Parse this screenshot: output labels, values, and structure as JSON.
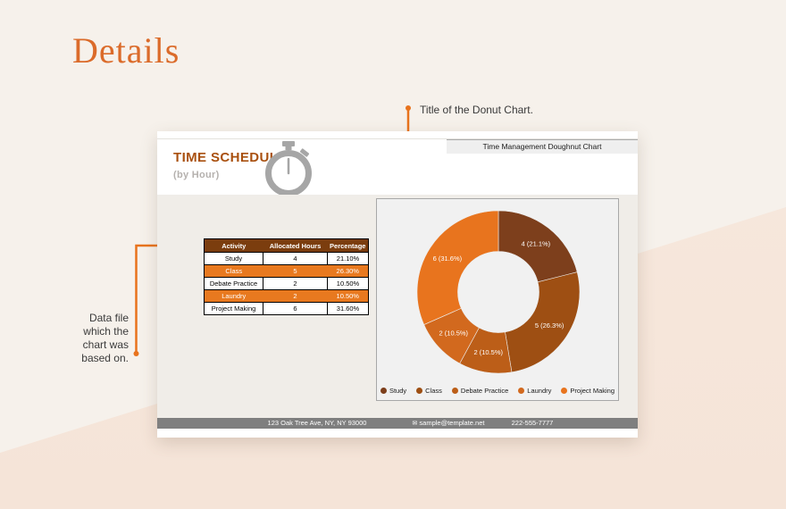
{
  "page": {
    "heading": "Details"
  },
  "annotations": {
    "title_note": "Title of the Donut Chart.",
    "data_note_lines": [
      "Data file",
      "which the",
      "chart was",
      "based on."
    ]
  },
  "slide": {
    "title": "TIME SCHEDULE",
    "subtitle": "(by Hour)",
    "header_strip": "Time Management Doughnut Chart",
    "table": {
      "headers": [
        "Activity",
        "Allocated Hours",
        "Percentage"
      ],
      "rows": [
        {
          "activity": "Study",
          "hours": "4",
          "percentage": "21.10%",
          "highlight": false
        },
        {
          "activity": "Class",
          "hours": "5",
          "percentage": "26.30%",
          "highlight": true
        },
        {
          "activity": "Debate Practice",
          "hours": "2",
          "percentage": "10.50%",
          "highlight": false
        },
        {
          "activity": "Laundry",
          "hours": "2",
          "percentage": "10.50%",
          "highlight": true
        },
        {
          "activity": "Project Making",
          "hours": "6",
          "percentage": "31.60%",
          "highlight": false
        }
      ]
    },
    "footer": {
      "address": "123 Oak Tree Ave, NY, NY 93000",
      "email": "sample@template.net",
      "email_icon": "envelope-icon",
      "phone": "222-555-7777"
    }
  },
  "chart_data": {
    "type": "pie",
    "subtype": "doughnut",
    "title": "Time Management Doughnut Chart",
    "categories": [
      "Study",
      "Class",
      "Debate Practice",
      "Laundry",
      "Project Making"
    ],
    "values": [
      4,
      5,
      2,
      2,
      6
    ],
    "percentages": [
      21.1,
      26.3,
      10.5,
      10.5,
      31.6
    ],
    "labels": [
      "4 (21.1%)",
      "5 (26.3%)",
      "2 (10.5%)",
      "2 (10.5%)",
      "6 (31.6%)"
    ],
    "colors": [
      "#7D3F1C",
      "#9E4F13",
      "#BC5E18",
      "#D2691E",
      "#E8741E"
    ],
    "legend_position": "bottom",
    "inner_radius_ratio": 0.5,
    "start_angle_deg": 0,
    "direction": "clockwise"
  },
  "colors": {
    "background_cream": "#F6F1EB",
    "background_pink": "#F6E7DC",
    "heading_orange": "#DB6B2A",
    "arrow_orange": "#E8731D",
    "slide_title_brown": "#A9500F",
    "table_header_brown": "#7B3D0E",
    "table_row_orange": "#E8791F",
    "footer_gray": "#7F7F7F",
    "icon_gray": "#A6A6A6"
  }
}
